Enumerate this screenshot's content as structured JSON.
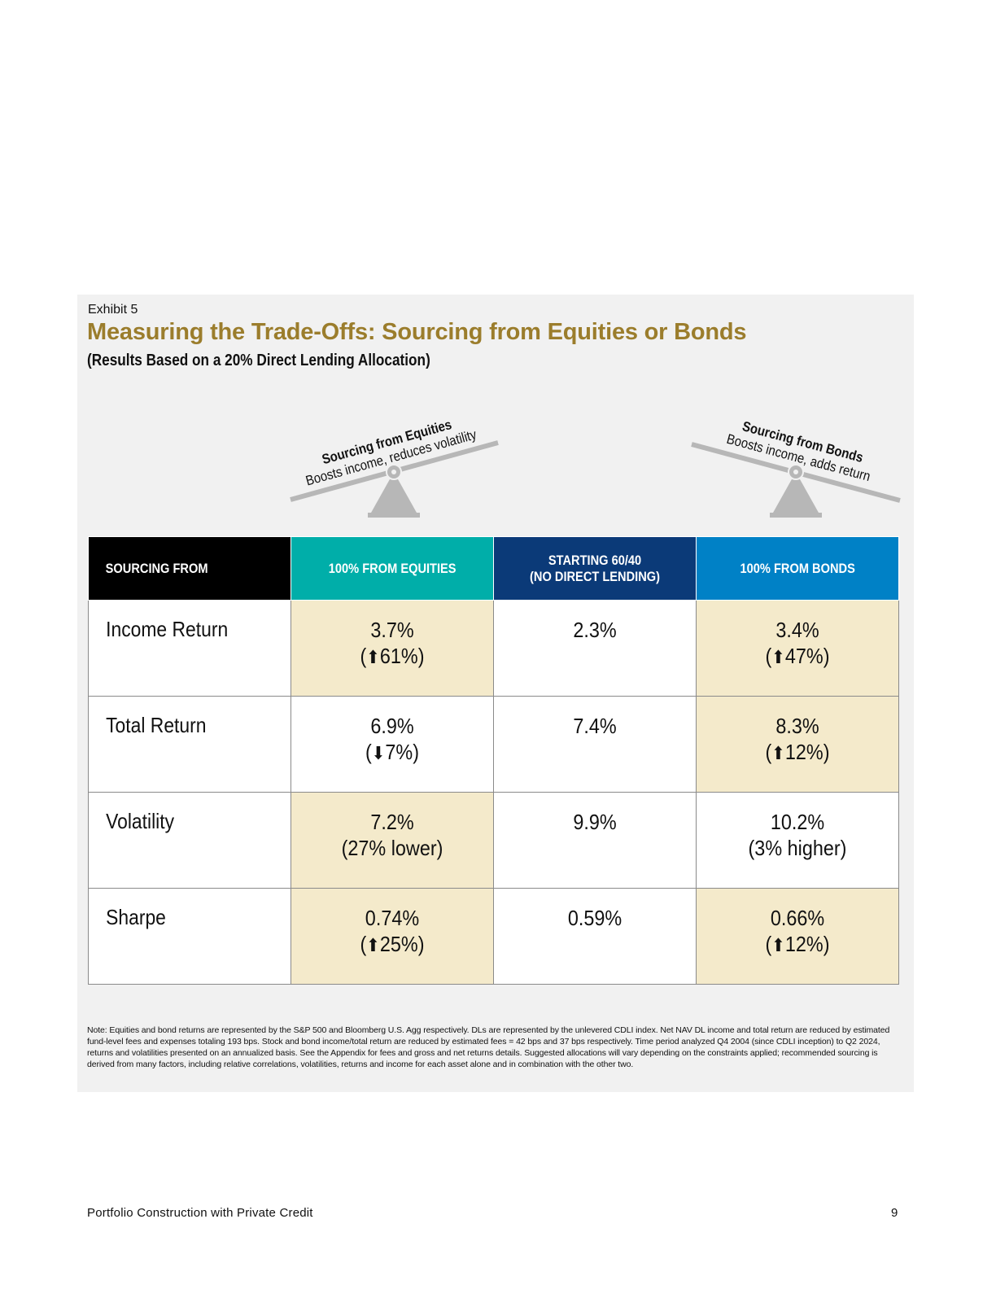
{
  "exhibit_label": "Exhibit 5",
  "title": "Measuring the Trade-Offs: Sourcing from Equities or Bonds",
  "subtitle": "(Results Based on a 20% Direct Lending Allocation)",
  "scales": {
    "equities": {
      "title": "Sourcing from Equities",
      "caption": "Boosts income, reduces volatility",
      "tilt_direction": "up-right"
    },
    "bonds": {
      "title": "Sourcing from Bonds",
      "caption": "Boosts income, adds return",
      "tilt_direction": "down-right"
    }
  },
  "table": {
    "headers": [
      "SOURCING FROM",
      "100% FROM EQUITIES",
      "STARTING 60/40\n(NO DIRECT LENDING)",
      "100% FROM BONDS"
    ],
    "rows": [
      {
        "label": "Income Return",
        "equities": {
          "value": "3.7%",
          "change": "61%",
          "arrow": "up",
          "highlight": true
        },
        "base": {
          "value": "2.3%"
        },
        "bonds": {
          "value": "3.4%",
          "change": "47%",
          "arrow": "up",
          "highlight": true
        }
      },
      {
        "label": "Total Return",
        "equities": {
          "value": "6.9%",
          "change": "7%",
          "arrow": "down",
          "highlight": false
        },
        "base": {
          "value": "7.4%"
        },
        "bonds": {
          "value": "8.3%",
          "change": "12%",
          "arrow": "up",
          "highlight": true
        }
      },
      {
        "label": "Volatility",
        "equities": {
          "value": "7.2%",
          "change": "(27% lower)",
          "arrow": "none",
          "highlight": true
        },
        "base": {
          "value": "9.9%"
        },
        "bonds": {
          "value": "10.2%",
          "change": "(3% higher)",
          "arrow": "none",
          "highlight": false
        }
      },
      {
        "label": "Sharpe",
        "equities": {
          "value": "0.74%",
          "change": "25%",
          "arrow": "up",
          "highlight": true
        },
        "base": {
          "value": "0.59%"
        },
        "bonds": {
          "value": "0.66%",
          "change": "12%",
          "arrow": "up",
          "highlight": true
        }
      }
    ]
  },
  "note": "Note: Equities and bond returns are represented by the S&P 500 and Bloomberg U.S. Agg respectively. DLs are represented by the unlevered CDLI index. Net NAV DL income and total return are reduced by estimated fund-level fees and expenses totaling 193 bps. Stock and bond income/total return are reduced by estimated fees = 42 bps and 37 bps respectively. Time period analyzed Q4 2004 (since CDLI inception) to Q2 2024, returns and volatilities presented on an annualized basis. See the Appendix for fees and gross and net returns details. Suggested allocations will vary depending on the constraints applied; recommended sourcing is derived from many factors, including relative correlations, volatilities, returns and income for each asset alone and in combination with the other two.",
  "footer": {
    "left": "Portfolio Construction with Private Credit",
    "page_number": "9"
  },
  "colors": {
    "gold": "#9b7d2c",
    "teal": "#00aea9",
    "navy": "#0b3a78",
    "blue": "#0081c6",
    "highlight": "#f4eacb"
  }
}
